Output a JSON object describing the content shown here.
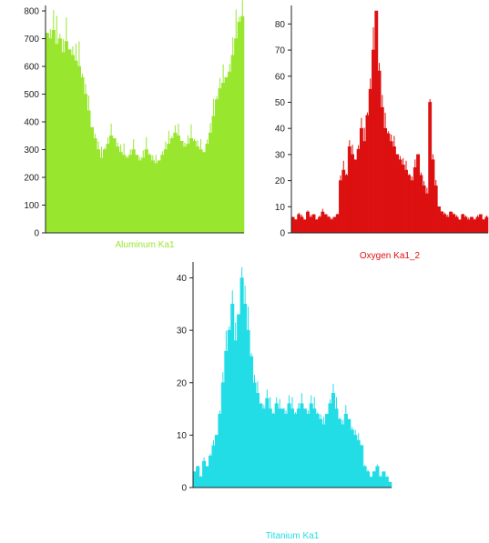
{
  "chart_data": [
    {
      "type": "area",
      "title": "",
      "xlabel": "Aluminum Ka1",
      "ylabel": "",
      "ylim": [
        0,
        800
      ],
      "yticks": [
        "0",
        "100",
        "200",
        "300",
        "400",
        "500",
        "600",
        "700",
        "800"
      ],
      "grid": false,
      "color": "#99e62e",
      "series": [
        {
          "values": [
            720,
            700,
            730,
            680,
            700,
            650,
            690,
            660,
            640,
            620,
            600,
            560,
            500,
            440,
            380,
            340,
            300,
            270,
            300,
            320,
            350,
            340,
            310,
            290,
            280,
            270,
            280,
            300,
            280,
            260,
            270,
            300,
            280,
            260,
            250,
            260,
            280,
            300,
            320,
            340,
            360,
            350,
            330,
            310,
            320,
            340,
            330,
            310,
            300,
            290,
            320,
            360,
            420,
            480,
            520,
            540,
            560,
            580,
            640,
            700,
            760,
            780
          ]
        }
      ]
    },
    {
      "type": "area",
      "title": "",
      "xlabel": "Oxygen Ka1_2",
      "ylabel": "",
      "ylim": [
        0,
        85
      ],
      "yticks": [
        "0",
        "10",
        "20",
        "30",
        "40",
        "50",
        "60",
        "70",
        "80"
      ],
      "grid": false,
      "color": "#dd1111",
      "series": [
        {
          "values": [
            6,
            5,
            7,
            6,
            5,
            8,
            6,
            7,
            5,
            6,
            8,
            7,
            6,
            5,
            6,
            7,
            20,
            24,
            22,
            33,
            30,
            28,
            32,
            40,
            35,
            45,
            55,
            70,
            85,
            62,
            48,
            40,
            38,
            35,
            33,
            30,
            28,
            26,
            24,
            22,
            20,
            25,
            30,
            22,
            18,
            15,
            50,
            28,
            18,
            10,
            8,
            7,
            6,
            8,
            7,
            6,
            5,
            7,
            6,
            5,
            6,
            5,
            6,
            7,
            5,
            6
          ]
        }
      ]
    },
    {
      "type": "area",
      "title": "",
      "xlabel": "Titanium Ka1",
      "ylabel": "",
      "ylim": [
        0,
        42
      ],
      "yticks": [
        "0",
        "10",
        "20",
        "30",
        "40"
      ],
      "grid": false,
      "color": "#22dde6",
      "series": [
        {
          "values": [
            3,
            4,
            2,
            5,
            4,
            6,
            8,
            10,
            14,
            20,
            26,
            30,
            35,
            28,
            33,
            40,
            35,
            30,
            25,
            20,
            18,
            16,
            15,
            17,
            15,
            14,
            16,
            15,
            15,
            14,
            16,
            15,
            14,
            15,
            16,
            15,
            14,
            16,
            15,
            14,
            13,
            12,
            14,
            16,
            18,
            15,
            13,
            12,
            14,
            13,
            11,
            10,
            9,
            8,
            4,
            3,
            2,
            3,
            4,
            2,
            3,
            2,
            1
          ]
        }
      ]
    }
  ]
}
